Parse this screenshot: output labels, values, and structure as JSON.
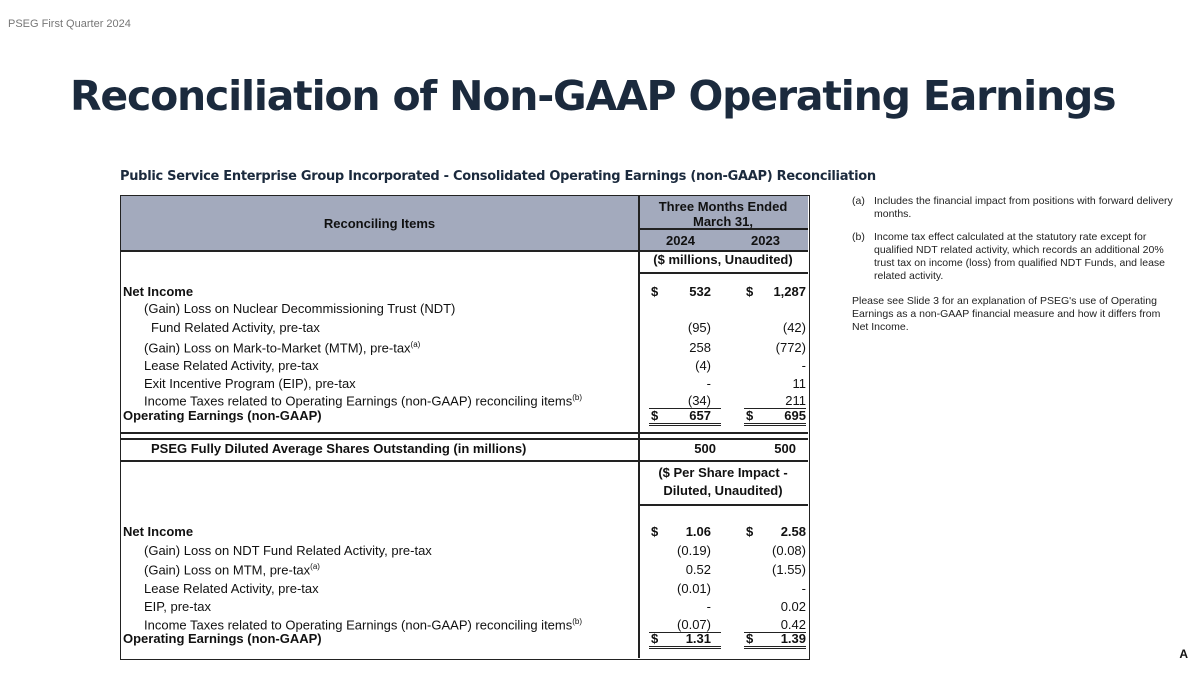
{
  "header_label": "PSEG First Quarter 2024",
  "title": "Reconciliation of Non-GAAP Operating Earnings",
  "subtitle": "Public Service Enterprise Group Incorporated - Consolidated Operating Earnings (non-GAAP) Reconciliation",
  "table": {
    "col_header": "Reconciling Items",
    "period": "Three Months Ended",
    "period2": "March 31,",
    "years": [
      "2024",
      "2023"
    ],
    "units1": "($ millions, Unaudited)",
    "units2a": "($ Per Share Impact -",
    "units2b": "Diluted, Unaudited)",
    "dollar": "$",
    "section1": [
      {
        "label": "Net Income",
        "v2024": "532",
        "v2023": "1,287",
        "bold": true,
        "dollar": true
      },
      {
        "label": "(Gain) Loss on Nuclear Decommissioning Trust (NDT)",
        "v2024": "",
        "v2023": ""
      },
      {
        "label": "Fund Related Activity, pre-tax",
        "v2024": "(95)",
        "v2023": "(42)"
      },
      {
        "label": "(Gain) Loss on Mark-to-Market (MTM), pre-tax",
        "sup": "(a)",
        "v2024": "258",
        "v2023": "(772)"
      },
      {
        "label": "Lease Related Activity, pre-tax",
        "v2024": "(4)",
        "v2023": "-"
      },
      {
        "label": "Exit Incentive Program (EIP), pre-tax",
        "v2024": "-",
        "v2023": "11"
      },
      {
        "label": "Income Taxes related to Operating Earnings (non-GAAP) reconciling items",
        "sup": "(b)",
        "v2024": "(34)",
        "v2023": "211"
      },
      {
        "label": "Operating Earnings (non-GAAP)",
        "v2024": "657",
        "v2023": "695",
        "bold": true,
        "dollar": true
      }
    ],
    "shares": {
      "label": "PSEG Fully Diluted Average Shares Outstanding (in millions)",
      "v2024": "500",
      "v2023": "500"
    },
    "section2": [
      {
        "label": "Net Income",
        "v2024": "1.06",
        "v2023": "2.58",
        "bold": true,
        "dollar": true
      },
      {
        "label": "(Gain) Loss on NDT Fund Related Activity, pre-tax",
        "v2024": "(0.19)",
        "v2023": "(0.08)"
      },
      {
        "label": "(Gain) Loss on MTM, pre-tax",
        "sup": "(a)",
        "v2024": "0.52",
        "v2023": "(1.55)"
      },
      {
        "label": "Lease Related Activity, pre-tax",
        "v2024": "(0.01)",
        "v2023": "-"
      },
      {
        "label": "EIP, pre-tax",
        "v2024": "-",
        "v2023": "0.02"
      },
      {
        "label": "Income Taxes related to Operating Earnings (non-GAAP) reconciling items",
        "sup": "(b)",
        "v2024": "(0.07)",
        "v2023": "0.42"
      },
      {
        "label": "Operating Earnings (non-GAAP)",
        "v2024": "1.31",
        "v2023": "1.39",
        "bold": true,
        "dollar": true
      }
    ]
  },
  "notes": {
    "a_marker": "(a)",
    "a": "Includes the financial impact from positions with forward delivery months.",
    "b_marker": "(b)",
    "b": "Income tax effect calculated at the statutory rate except for qualified NDT related activity, which records an additional 20% trust tax on income (loss) from qualified NDT Funds, and lease related activity.",
    "see": "Please see Slide 3 for an explanation of PSEG's use of Operating Earnings as a non-GAAP financial measure and how it differs from Net Income."
  },
  "footer_mark": "A"
}
